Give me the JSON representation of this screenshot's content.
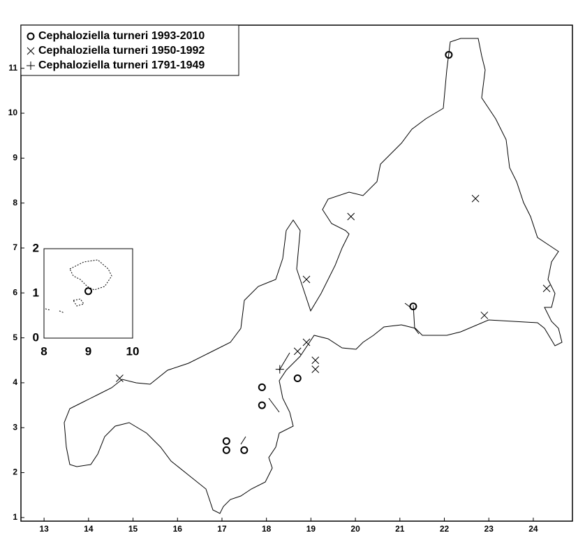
{
  "chart_data": [
    {
      "type": "scatter",
      "xlim": [
        12.48,
        24.88
      ],
      "ylim": [
        0.92,
        11.96
      ],
      "xticks": [
        13,
        14,
        15,
        16,
        17,
        18,
        19,
        20,
        21,
        22,
        23,
        24
      ],
      "yticks": [
        1,
        2,
        3,
        4,
        5,
        6,
        7,
        8,
        9,
        10,
        11
      ],
      "legend": "upper left",
      "series": [
        {
          "name": "Cephaloziella turneri 1993-2010",
          "marker": "circle",
          "color": "#000000",
          "x": [
            22.1,
            21.3,
            18.7,
            17.9,
            17.9,
            17.1,
            17.1,
            17.5
          ],
          "values": [
            11.3,
            5.7,
            4.1,
            3.9,
            3.5,
            2.7,
            2.5,
            2.5
          ]
        },
        {
          "name": "Cephaloziella turneri 1950-1992",
          "marker": "x",
          "color": "#000000",
          "x": [
            22.7,
            19.9,
            18.9,
            24.3,
            22.9,
            18.9,
            18.7,
            19.1,
            19.1,
            14.7
          ],
          "values": [
            8.1,
            7.7,
            6.3,
            6.1,
            5.5,
            4.9,
            4.7,
            4.5,
            4.3,
            4.1
          ]
        },
        {
          "name": "Cephaloziella turneri 1791-1949",
          "marker": "plus",
          "color": "#000000",
          "x": [
            18.3
          ],
          "values": [
            4.3
          ]
        }
      ]
    },
    {
      "type": "scatter",
      "xlim": [
        8,
        10
      ],
      "ylim": [
        0,
        2
      ],
      "xticks": [
        8,
        9,
        10
      ],
      "yticks": [
        0,
        1,
        2
      ],
      "series": [
        {
          "marker": "circle",
          "color": "#000000",
          "x": [
            9.0
          ],
          "values": [
            1.05
          ]
        }
      ]
    }
  ]
}
